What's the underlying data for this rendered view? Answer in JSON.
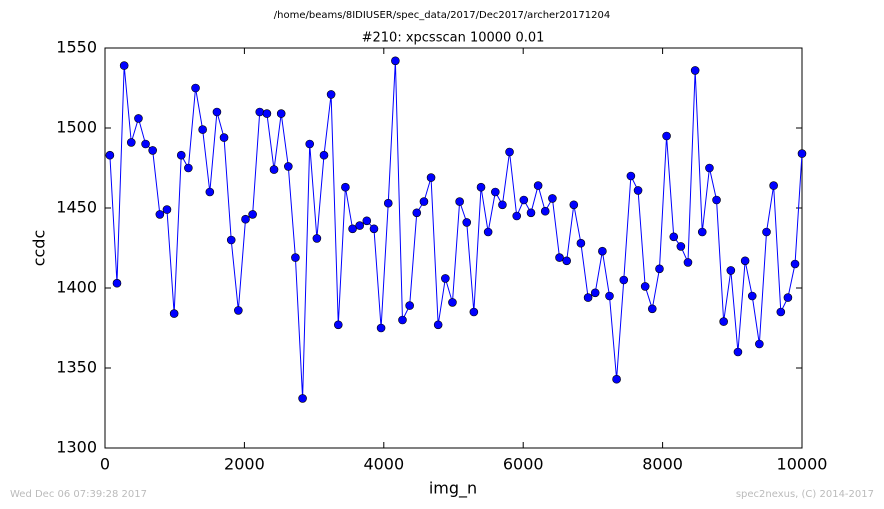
{
  "chart_data": {
    "type": "line",
    "header": "/home/beams/8IDIUSER/spec_data/2017/Dec2017/archer20171204",
    "title": "#210: xpcsscan 10000 0.01",
    "x_label": "img_n",
    "y_label": "ccdc",
    "footer_left": "Wed Dec 06 07:39:28 2017",
    "footer_right": "spec2nexus, (C) 2014-2017",
    "xlim": [
      0,
      10000
    ],
    "ylim": [
      1300,
      1550
    ],
    "xticks": [
      0,
      2000,
      4000,
      6000,
      8000,
      10000
    ],
    "yticks": [
      1300,
      1350,
      1400,
      1450,
      1500,
      1550
    ],
    "x": [
      70,
      172,
      275,
      377,
      480,
      582,
      684,
      787,
      889,
      992,
      1094,
      1196,
      1299,
      1401,
      1504,
      1606,
      1708,
      1811,
      1913,
      2016,
      2118,
      2220,
      2323,
      2425,
      2528,
      2630,
      2732,
      2835,
      2937,
      3040,
      3142,
      3244,
      3347,
      3449,
      3552,
      3654,
      3756,
      3859,
      3961,
      4064,
      4166,
      4268,
      4371,
      4473,
      4576,
      4678,
      4780,
      4883,
      4985,
      5088,
      5190,
      5292,
      5395,
      5497,
      5600,
      5702,
      5804,
      5907,
      6009,
      6112,
      6214,
      6316,
      6419,
      6521,
      6624,
      6726,
      6828,
      6931,
      7033,
      7136,
      7238,
      7340,
      7443,
      7545,
      7648,
      7750,
      7852,
      7955,
      8057,
      8160,
      8262,
      8364,
      8467,
      8569,
      8672,
      8774,
      8876,
      8979,
      9081,
      9184,
      9286,
      9388,
      9491,
      9593,
      9696,
      9798,
      9900,
      10000
    ],
    "series": [
      {
        "color": "#0000ff",
        "values": [
          1483,
          1403,
          1539,
          1491,
          1506,
          1490,
          1486,
          1446,
          1449,
          1384,
          1483,
          1475,
          1525,
          1499,
          1460,
          1510,
          1494,
          1430,
          1386,
          1443,
          1446,
          1510,
          1509,
          1474,
          1509,
          1476,
          1419,
          1331,
          1490,
          1431,
          1483,
          1521,
          1377,
          1463,
          1437,
          1439,
          1442,
          1437,
          1375,
          1453,
          1542,
          1380,
          1389,
          1447,
          1454,
          1469,
          1377,
          1406,
          1391,
          1454,
          1441,
          1385,
          1463,
          1435,
          1460,
          1452,
          1485,
          1445,
          1455,
          1447,
          1464,
          1448,
          1456,
          1419,
          1417,
          1452,
          1428,
          1394,
          1397,
          1423,
          1395,
          1343,
          1405,
          1470,
          1461,
          1401,
          1387,
          1412,
          1495,
          1432,
          1426,
          1416,
          1536,
          1435,
          1475,
          1455,
          1379,
          1411,
          1360,
          1417,
          1395,
          1365,
          1435,
          1464,
          1385,
          1394,
          1415,
          1484
        ]
      }
    ]
  }
}
